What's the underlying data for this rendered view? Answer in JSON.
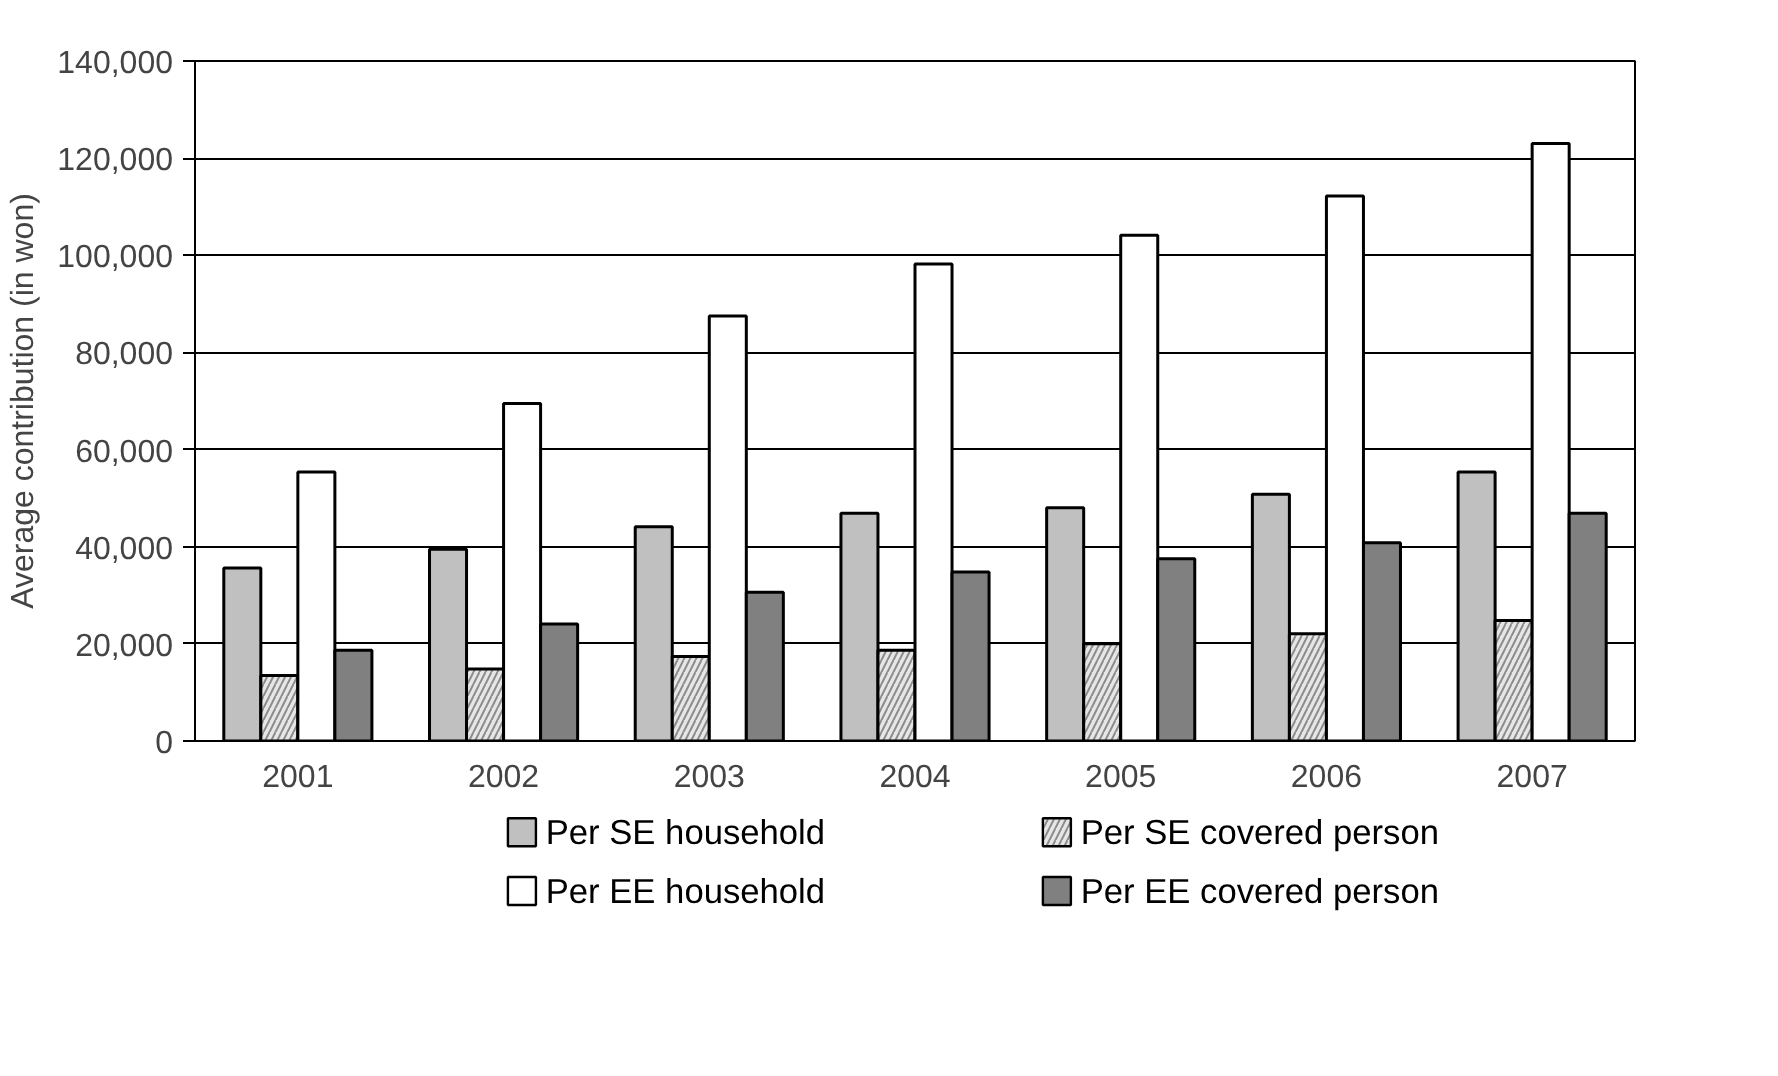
{
  "chart_data": {
    "type": "bar",
    "ylabel": "Average contribution (in won)",
    "categories": [
      "2001",
      "2002",
      "2003",
      "2004",
      "2005",
      "2006",
      "2007"
    ],
    "series": [
      {
        "name": "Per SE household",
        "color": "#c0c0c0",
        "values": [
          35600,
          39500,
          44100,
          46900,
          48000,
          50800,
          55400
        ]
      },
      {
        "name": "Per SE covered person",
        "color": "#e6e6e6",
        "values": [
          13500,
          14800,
          17400,
          18700,
          20000,
          22100,
          24800
        ]
      },
      {
        "name": "Per EE household",
        "color": "#ffffff",
        "values": [
          55400,
          69500,
          87500,
          98200,
          104100,
          112200,
          123000
        ]
      },
      {
        "name": "Per EE covered person",
        "color": "#808080",
        "values": [
          18700,
          24100,
          30600,
          34800,
          37500,
          40800,
          46900
        ]
      }
    ],
    "ylim": [
      0,
      140000
    ],
    "yticks": [
      {
        "value": 0,
        "label": "0"
      },
      {
        "value": 20000,
        "label": "20,000"
      },
      {
        "value": 40000,
        "label": "40,000"
      },
      {
        "value": 60000,
        "label": "60,000"
      },
      {
        "value": 80000,
        "label": "80,000"
      },
      {
        "value": 100000,
        "label": "100,000"
      },
      {
        "value": 120000,
        "label": "120,000"
      },
      {
        "value": 140000,
        "label": "140,000"
      }
    ],
    "grid": "y",
    "legend": "bottom"
  }
}
